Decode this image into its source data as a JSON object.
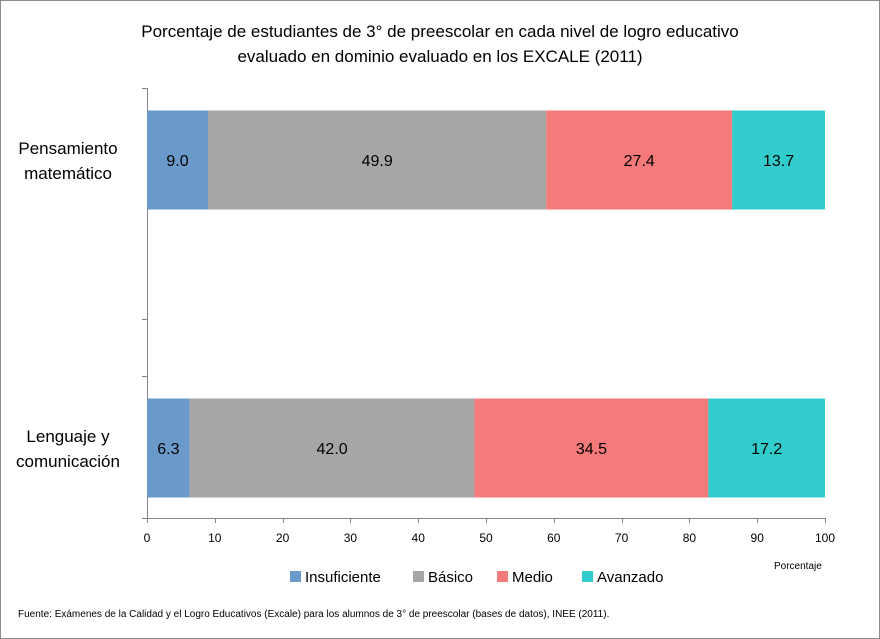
{
  "chart_data": {
    "type": "bar",
    "orientation": "horizontal",
    "stacked": true,
    "title_lines": [
      "Porcentaje de estudiantes de 3° de preescolar en cada nivel de logro educativo",
      "evaluado en dominio evaluado en los EXCALE (2011)"
    ],
    "categories": [
      [
        "Pensamiento",
        "matemático"
      ],
      [
        "Lenguaje y",
        "comunicación"
      ]
    ],
    "series": [
      {
        "name": "Insuficiente",
        "color": "#6b99c9",
        "values": [
          9.0,
          6.3
        ]
      },
      {
        "name": "Básico",
        "color": "#a6a6a6",
        "values": [
          49.9,
          42.0
        ]
      },
      {
        "name": "Medio",
        "color": "#f57a7a",
        "values": [
          27.4,
          34.5
        ]
      },
      {
        "name": "Avanzado",
        "color": "#33cccc",
        "values": [
          13.7,
          17.2
        ]
      }
    ],
    "xlim": [
      0,
      100
    ],
    "xticks": [
      0,
      10,
      20,
      30,
      40,
      50,
      60,
      70,
      80,
      90,
      100
    ],
    "xlabel": "Porcentaje",
    "legend_position": "bottom",
    "grid": false
  },
  "source_note": "Fuente: Exámenes de la Calidad y el Logro Educativos (Excale) para los alumnos de 3° de preescolar (bases de datos), INEE (2011)."
}
